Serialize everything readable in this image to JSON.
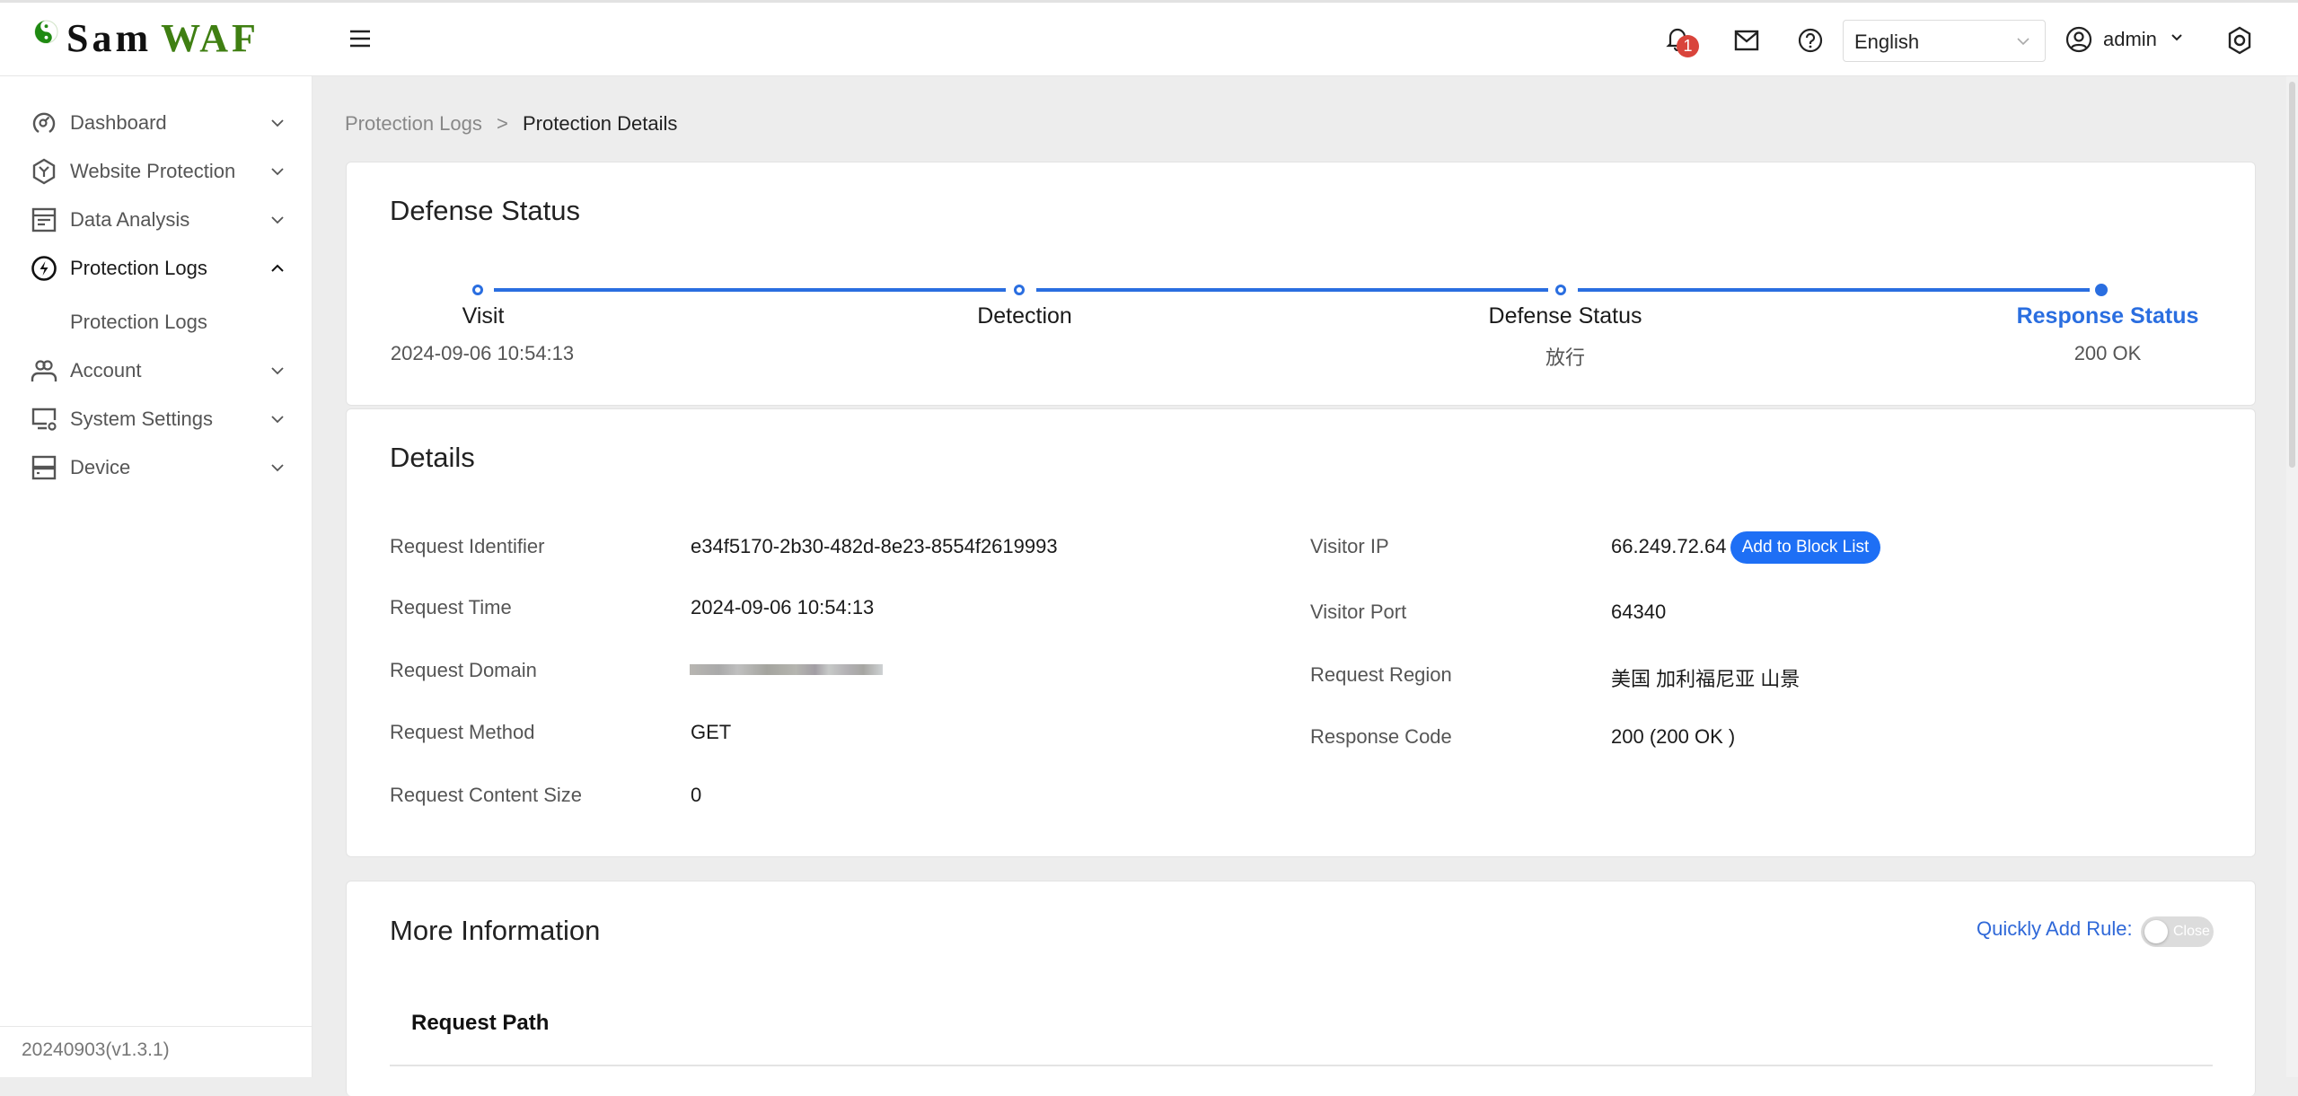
{
  "brand": {
    "name_part1": "Sam",
    "name_part2": "WAF",
    "accent": "#3f7f12"
  },
  "header": {
    "notification_count": "1",
    "language": {
      "selected": "English"
    },
    "user": {
      "name": "admin"
    }
  },
  "sidebar": {
    "items": [
      {
        "label": "Dashboard",
        "icon": "dashboard-gauge-icon"
      },
      {
        "label": "Website Protection",
        "icon": "hexagon-shield-icon"
      },
      {
        "label": "Data Analysis",
        "icon": "table-list-icon"
      },
      {
        "label": "Protection Logs",
        "icon": "lightning-circle-icon",
        "expanded": true
      },
      {
        "label": "Protection Logs",
        "sub": true
      },
      {
        "label": "Account",
        "icon": "users-icon"
      },
      {
        "label": "System Settings",
        "icon": "monitor-gear-icon"
      },
      {
        "label": "Device",
        "icon": "server-icon"
      }
    ],
    "version": "20240903(v1.3.1)"
  },
  "breadcrumb": {
    "parent": "Protection Logs",
    "separator": ">",
    "current": "Protection Details"
  },
  "defense_card": {
    "title": "Defense Status",
    "steps": [
      {
        "label": "Visit",
        "sub": "2024-09-06 10:54:13"
      },
      {
        "label": "Detection",
        "sub": ""
      },
      {
        "label": "Defense Status",
        "sub": "放行"
      },
      {
        "label": "Response Status",
        "sub": "200 OK",
        "current": true
      }
    ],
    "accent": "#2a6ee0"
  },
  "details_card": {
    "title": "Details",
    "left": [
      {
        "label": "Request Identifier",
        "value": "e34f5170-2b30-482d-8e23-8554f2619993"
      },
      {
        "label": "Request Time",
        "value": "2024-09-06 10:54:13"
      },
      {
        "label": "Request Domain",
        "value": "",
        "redacted": true
      },
      {
        "label": "Request Method",
        "value": "GET"
      },
      {
        "label": "Request Content Size",
        "value": "0"
      }
    ],
    "right": [
      {
        "label": "Visitor IP",
        "value": "66.249.72.64"
      },
      {
        "label": "Visitor Port",
        "value": "64340"
      },
      {
        "label": "Request Region",
        "value": "美国 加利福尼亚 山景"
      },
      {
        "label": "Response Code",
        "value": "200 (200 OK )"
      }
    ],
    "block_button": "Add to Block List"
  },
  "more_card": {
    "title": "More Information",
    "quick_rule_label": "Quickly Add Rule:",
    "quick_rule_toggle": {
      "state": "off",
      "label": "Close"
    },
    "section_title": "Request Path"
  }
}
